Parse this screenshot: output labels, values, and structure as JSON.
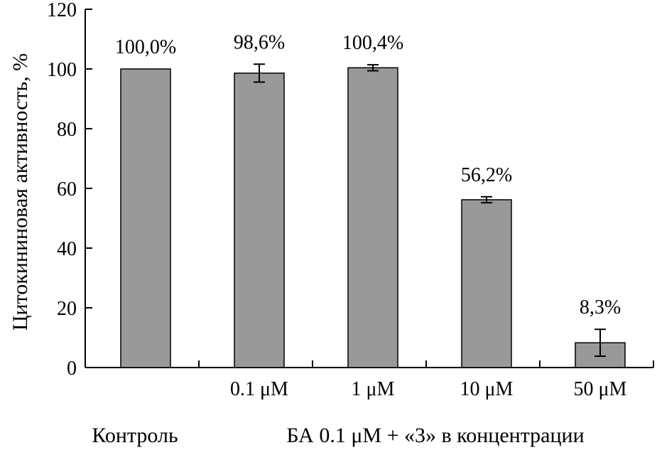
{
  "chart_data": {
    "type": "bar",
    "ylabel": "Цитокининовая активность, %",
    "ylim": [
      0,
      120
    ],
    "yticks": [
      0,
      20,
      40,
      60,
      80,
      100,
      120
    ],
    "categories": [
      "",
      "0.1 μM",
      "1 μM",
      "10 μM",
      "50 μM"
    ],
    "values": [
      100.0,
      98.6,
      100.4,
      56.2,
      8.3
    ],
    "errors": [
      0,
      3.0,
      1.0,
      1.0,
      4.5
    ],
    "data_labels": [
      "100,0%",
      "98,6%",
      "100,4%",
      "56,2%",
      "8,3%"
    ],
    "group_labels": [
      "Контроль",
      "БА 0.1 μM + «3» в концентрации"
    ],
    "grid": false,
    "colors": {
      "bar": "#999999",
      "stroke": "#000000"
    }
  }
}
